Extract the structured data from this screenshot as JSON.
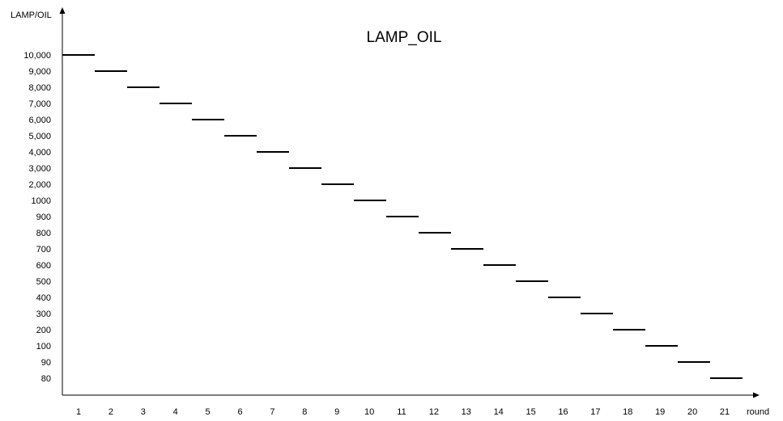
{
  "chart_data": {
    "type": "line",
    "title": "LAMP_OIL",
    "xlabel": "round",
    "ylabel": "LAMP/OIL",
    "categories": [
      "1",
      "2",
      "3",
      "4",
      "5",
      "6",
      "7",
      "8",
      "9",
      "10",
      "11",
      "12",
      "13",
      "14",
      "15",
      "16",
      "17",
      "18",
      "19",
      "20",
      "21"
    ],
    "y_tick_labels": [
      "10,000",
      "9,000",
      "8,000",
      "7,000",
      "6,000",
      "5,000",
      "4,000",
      "3,000",
      "2,000",
      "1000",
      "900",
      "800",
      "700",
      "600",
      "500",
      "400",
      "300",
      "200",
      "100",
      "90",
      "80"
    ],
    "series": [
      {
        "values": [
          10000,
          9000,
          8000,
          7000,
          6000,
          5000,
          4000,
          3000,
          2000,
          1000,
          900,
          800,
          700,
          600,
          500,
          400,
          300,
          200,
          100,
          90,
          80
        ]
      }
    ],
    "grid": false,
    "legend": "none",
    "line_color": "#000000"
  }
}
